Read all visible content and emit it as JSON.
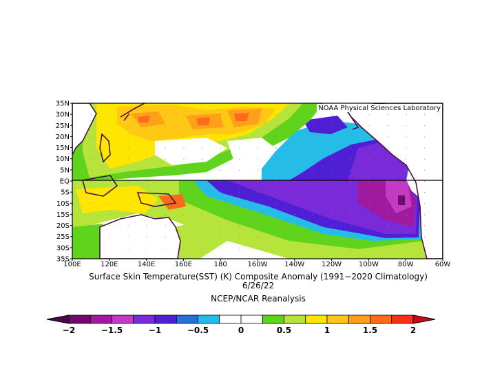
{
  "map": {
    "credit": "NOAA Physical Sciences Laboratory",
    "lat_labels": [
      "35N",
      "30N",
      "25N",
      "20N",
      "15N",
      "10N",
      "5N",
      "EQ",
      "5S",
      "10S",
      "15S",
      "20S",
      "25S",
      "30S",
      "35S"
    ],
    "lon_labels": [
      "100E",
      "120E",
      "140E",
      "160E",
      "180",
      "160W",
      "140W",
      "120W",
      "100W",
      "80W",
      "60W"
    ],
    "domain": {
      "lon_min": 100,
      "lon_max": 300,
      "lat_min": -35,
      "lat_max": 35
    }
  },
  "caption": {
    "title": "Surface Skin Temperature(SST) (K) Composite Anomaly (1991−2020 Climatology)",
    "date": "6/26/22",
    "source": "NCEP/NCAR Reanalysis"
  },
  "colorbar": {
    "labels": [
      "−2",
      "−1.5",
      "−1",
      "−0.5",
      "0",
      "0.5",
      "1",
      "1.5",
      "2"
    ],
    "colors": [
      "#6e0a6e",
      "#a01aa0",
      "#c23bc2",
      "#7a2ad8",
      "#4f1fd6",
      "#2a6fd6",
      "#25bde8",
      "#ffffff",
      "#ffffff",
      "#60d41c",
      "#b6e43a",
      "#ffe600",
      "#ffc814",
      "#ffa01a",
      "#ff6a1a",
      "#ff2e1a"
    ],
    "under_color": "#4a0a4a",
    "over_color": "#c80a1a"
  }
}
